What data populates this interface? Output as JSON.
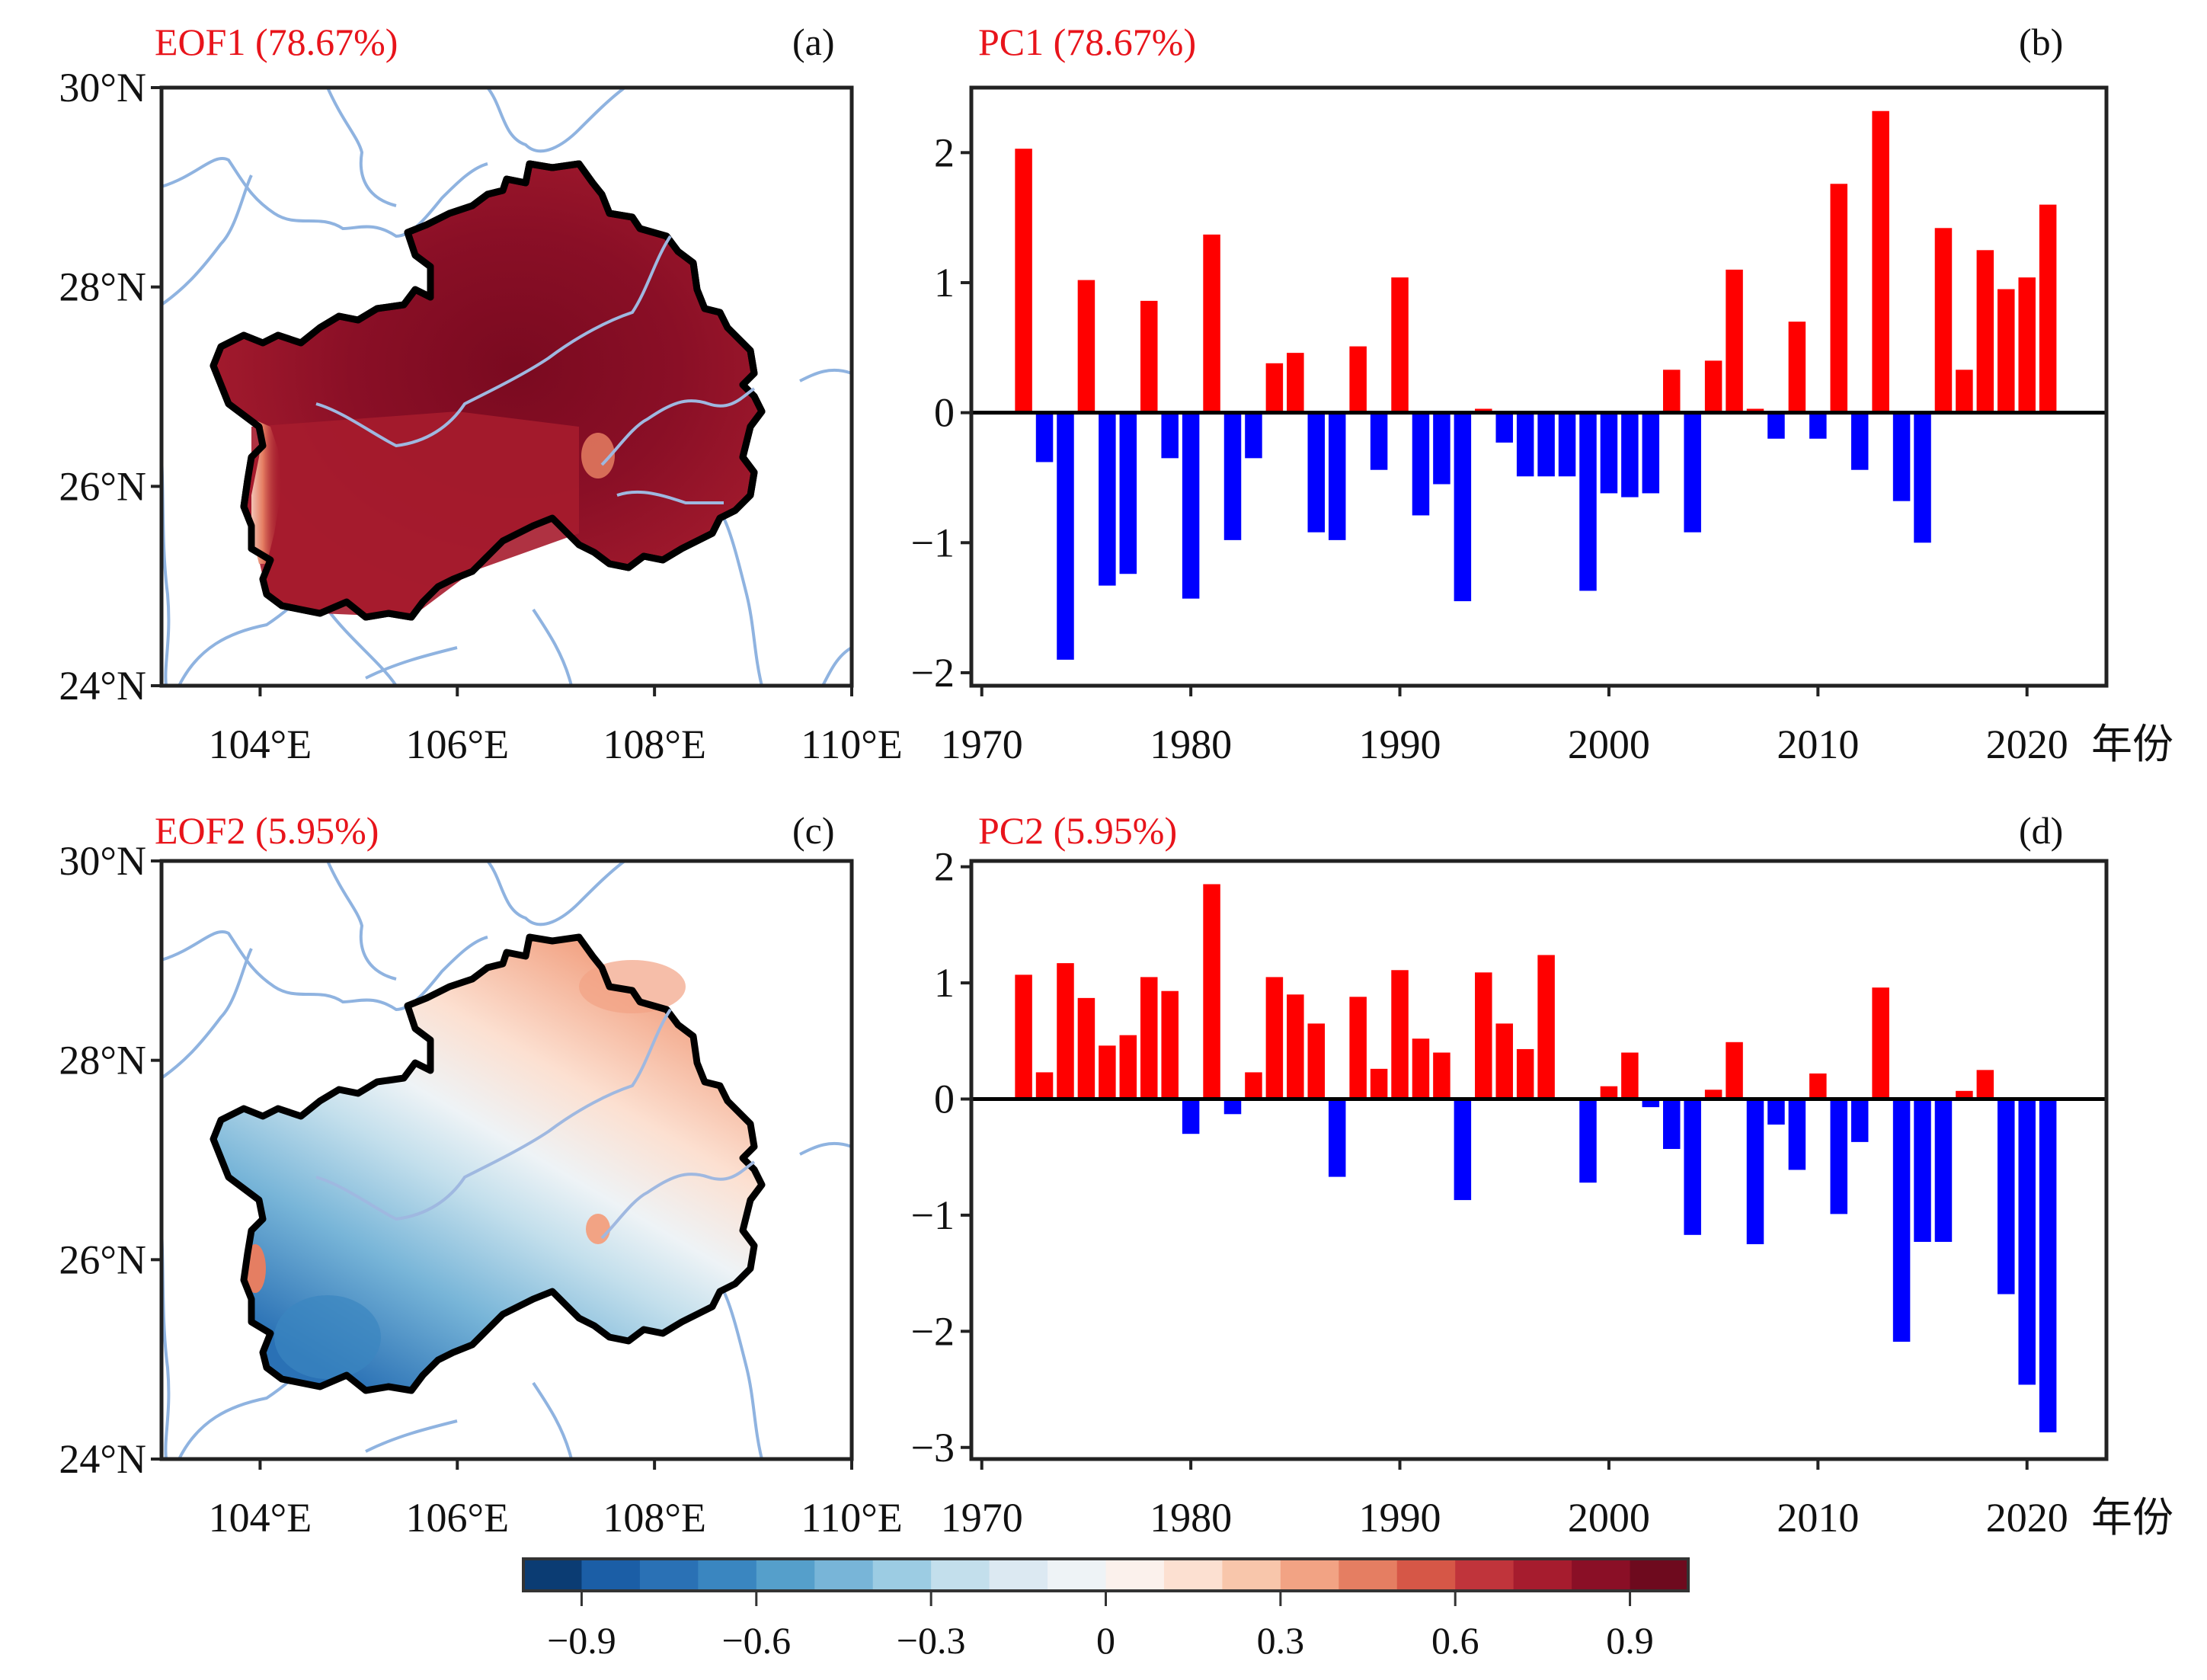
{
  "figure": {
    "panels": [
      {
        "id": "a",
        "label": "(a)",
        "title": "EOF1 (78.67%)",
        "kind": "map"
      },
      {
        "id": "b",
        "label": "(b)",
        "title": "PC1 (78.67%)",
        "kind": "bar"
      },
      {
        "id": "c",
        "label": "(c)",
        "title": "EOF2 (5.95%)",
        "kind": "map"
      },
      {
        "id": "d",
        "label": "(d)",
        "title": "PC2 (5.95%)",
        "kind": "bar"
      }
    ],
    "map_axes": {
      "lat_ticks": [
        "30°N",
        "28°N",
        "26°N",
        "24°N"
      ],
      "lon_ticks": [
        "104°E",
        "106°E",
        "108°E",
        "110°E"
      ],
      "lat_values": [
        30,
        28,
        26,
        24
      ],
      "lon_values": [
        104,
        106,
        108,
        110
      ],
      "lat_range": [
        24,
        30
      ],
      "lon_range": [
        103,
        110
      ]
    },
    "colorbar": {
      "range": [
        -1.0,
        1.0
      ],
      "step": 0.1,
      "tick_values": [
        -0.9,
        -0.6,
        -0.3,
        0,
        0.3,
        0.6,
        0.9
      ],
      "tick_labels": [
        "−0.9",
        "−0.6",
        "−0.3",
        "0",
        "0.3",
        "0.6",
        "0.9"
      ],
      "colors": [
        "#0b3c73",
        "#1b5ea6",
        "#2a71b5",
        "#3a86c0",
        "#559fcb",
        "#78b5d8",
        "#9ccce3",
        "#c3dfec",
        "#dce9f2",
        "#eef3f6",
        "#fbf1ec",
        "#fce0d1",
        "#f8c6ab",
        "#f2a384",
        "#e57e62",
        "#d65747",
        "#c0343b",
        "#a61c2e",
        "#8a0f26",
        "#6e0a1e"
      ]
    },
    "colors": {
      "positive_bar": "#ff0000",
      "negative_bar": "#0000ff",
      "title": "#e8141b",
      "river": "#8fb3e0",
      "border": "#000000"
    }
  },
  "chart_data": [
    {
      "type": "bar",
      "panel": "b",
      "title": "PC1 (78.67%)",
      "xlabel": "年份",
      "ylabel": "",
      "x_ticks": [
        1970,
        1980,
        1990,
        2000,
        2010,
        2020
      ],
      "x_tick_labels": [
        "1970",
        "1980",
        "1990",
        "2000",
        "2010",
        "2020"
      ],
      "y_ticks": [
        2,
        1,
        0,
        -1,
        -2
      ],
      "y_tick_labels": [
        "2",
        "1",
        "0",
        "−1",
        "−2"
      ],
      "xlim": [
        1969.5,
        2023.8
      ],
      "ylim": [
        -2.1,
        2.5
      ],
      "x": [
        1972,
        1973,
        1974,
        1975,
        1976,
        1977,
        1978,
        1979,
        1980,
        1981,
        1982,
        1983,
        1984,
        1985,
        1986,
        1987,
        1988,
        1989,
        1990,
        1991,
        1992,
        1993,
        1994,
        1995,
        1996,
        1997,
        1998,
        1999,
        2000,
        2001,
        2002,
        2003,
        2004,
        2005,
        2006,
        2007,
        2008,
        2009,
        2010,
        2011,
        2012,
        2013,
        2014,
        2015,
        2016,
        2017,
        2018,
        2019,
        2020,
        2021
      ],
      "values": [
        2.03,
        -0.38,
        -1.9,
        1.02,
        -1.33,
        -1.24,
        0.86,
        -0.35,
        -1.43,
        1.37,
        -0.98,
        -0.35,
        0.38,
        0.46,
        -0.92,
        -0.98,
        0.51,
        -0.44,
        1.04,
        -0.79,
        -0.55,
        -1.45,
        0.03,
        -0.23,
        -0.49,
        -0.49,
        -0.49,
        -1.37,
        -0.62,
        -0.65,
        -0.62,
        0.33,
        -0.92,
        0.4,
        1.1,
        0.03,
        -0.2,
        0.7,
        -0.2,
        1.76,
        -0.44,
        2.32,
        -0.68,
        -1.0,
        1.42,
        0.33,
        1.25,
        0.95,
        1.04,
        1.6
      ]
    },
    {
      "type": "bar",
      "panel": "d",
      "title": "PC2 (5.95%)",
      "xlabel": "年份",
      "ylabel": "",
      "x_ticks": [
        1970,
        1980,
        1990,
        2000,
        2010,
        2020
      ],
      "x_tick_labels": [
        "1970",
        "1980",
        "1990",
        "2000",
        "2010",
        "2020"
      ],
      "y_ticks": [
        2,
        1,
        0,
        -1,
        -2,
        -3
      ],
      "y_tick_labels": [
        "2",
        "1",
        "0",
        "−1",
        "−2",
        "−3"
      ],
      "xlim": [
        1969.5,
        2023.8
      ],
      "ylim": [
        -3.1,
        2.05
      ],
      "x": [
        1972,
        1973,
        1974,
        1975,
        1976,
        1977,
        1978,
        1979,
        1980,
        1981,
        1982,
        1983,
        1984,
        1985,
        1986,
        1987,
        1988,
        1989,
        1990,
        1991,
        1992,
        1993,
        1994,
        1995,
        1996,
        1997,
        1998,
        1999,
        2000,
        2001,
        2002,
        2003,
        2004,
        2005,
        2006,
        2007,
        2008,
        2009,
        2010,
        2011,
        2012,
        2013,
        2014,
        2015,
        2016,
        2017,
        2018,
        2019,
        2020,
        2021
      ],
      "values": [
        1.07,
        0.23,
        1.17,
        0.87,
        0.46,
        0.55,
        1.05,
        0.93,
        -0.3,
        1.85,
        -0.13,
        0.23,
        1.05,
        0.9,
        0.65,
        -0.67,
        0.88,
        0.26,
        1.11,
        0.52,
        0.4,
        -0.87,
        1.09,
        0.65,
        0.43,
        1.24,
        0.0,
        -0.72,
        0.11,
        0.4,
        -0.07,
        -0.43,
        -1.17,
        0.08,
        0.49,
        -1.25,
        -0.22,
        -0.61,
        0.22,
        -0.99,
        -0.37,
        0.96,
        -2.09,
        -1.23,
        -1.23,
        0.07,
        0.25,
        -1.68,
        -2.46,
        -2.87
      ]
    },
    {
      "type": "heatmap",
      "panel": "a",
      "title": "EOF1 (78.67%)",
      "description": "Spatial pattern over Guizhou province; strongly positive everywhere (~0.8–1.0 in north/center, ~0.6–0.8 in south), weaker (~0–0.3) at far western edge near 104.5°E, 25.8°N",
      "xlabel": "",
      "ylabel": "",
      "lon_range": [
        103,
        110
      ],
      "lat_range": [
        24,
        30
      ],
      "value_range": [
        -1.0,
        1.0
      ]
    },
    {
      "type": "heatmap",
      "panel": "c",
      "title": "EOF2 (5.95%)",
      "description": "Spatial dipole over Guizhou: positive (~0.1–0.4) in northeast, negative (~-0.1 to -0.6) in southwest, small positive spot on far western edge",
      "xlabel": "",
      "ylabel": "",
      "lon_range": [
        103,
        110
      ],
      "lat_range": [
        24,
        30
      ],
      "value_range": [
        -1.0,
        1.0
      ]
    }
  ]
}
